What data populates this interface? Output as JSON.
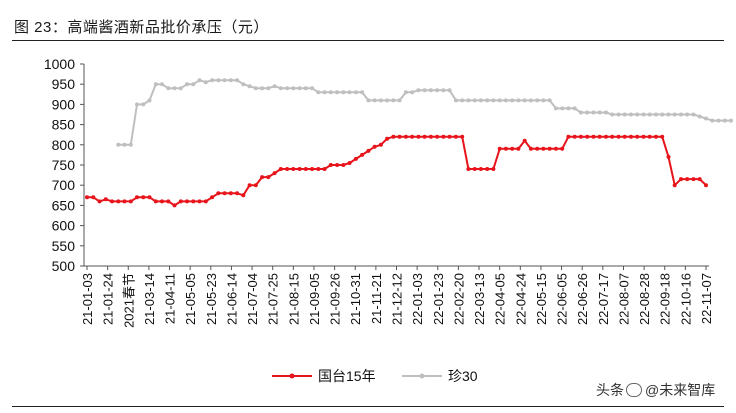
{
  "figure": {
    "title": "图 23：高端酱酒新品批价承压（元）"
  },
  "watermark": {
    "prefix": "头条",
    "name": "@未来智库"
  },
  "chart_data": {
    "type": "line",
    "xlabel": "",
    "ylabel": "",
    "ylim": [
      500,
      1000
    ],
    "y_ticks": [
      500,
      550,
      600,
      650,
      700,
      750,
      800,
      850,
      900,
      950,
      1000
    ],
    "x_tick_labels": [
      "21-01-03",
      "21-01-24",
      "2021春节",
      "21-03-14",
      "21-04-11",
      "21-05-05",
      "21-05-23",
      "21-06-14",
      "21-07-04",
      "21-07-25",
      "21-08-15",
      "21-09-05",
      "21-09-26",
      "21-10-31",
      "21-11-21",
      "21-12-12",
      "22-01-03",
      "22-01-23",
      "22-02-20",
      "22-03-13",
      "22-04-05",
      "22-04-24",
      "22-05-15",
      "22-06-05",
      "22-06-26",
      "22-07-17",
      "22-08-07",
      "22-08-28",
      "22-09-18",
      "22-10-16",
      "22-11-07"
    ],
    "legend": "bottom",
    "grid": false,
    "colors": {
      "国台15年": "#e8141b",
      "珍30": "#bfbfbf"
    },
    "series": [
      {
        "name": "国台15年",
        "values": [
          670,
          670,
          660,
          665,
          660,
          660,
          660,
          660,
          670,
          670,
          670,
          660,
          660,
          660,
          650,
          660,
          660,
          660,
          660,
          660,
          670,
          680,
          680,
          680,
          680,
          675,
          700,
          700,
          720,
          720,
          730,
          740,
          740,
          740,
          740,
          740,
          740,
          740,
          740,
          750,
          750,
          750,
          755,
          765,
          775,
          785,
          795,
          800,
          815,
          820,
          820,
          820,
          820,
          820,
          820,
          820,
          820,
          820,
          820,
          820,
          820,
          740,
          740,
          740,
          740,
          740,
          790,
          790,
          790,
          790,
          810,
          790,
          790,
          790,
          790,
          790,
          790,
          820,
          820,
          820,
          820,
          820,
          820,
          820,
          820,
          820,
          820,
          820,
          820,
          820,
          820,
          820,
          820,
          770,
          700,
          715,
          715,
          715,
          715,
          700
        ]
      },
      {
        "name": "珍30",
        "values": [
          null,
          null,
          null,
          null,
          null,
          800,
          800,
          800,
          900,
          900,
          910,
          950,
          950,
          940,
          940,
          940,
          950,
          950,
          960,
          955,
          960,
          960,
          960,
          960,
          960,
          950,
          945,
          940,
          940,
          940,
          945,
          940,
          940,
          940,
          940,
          940,
          940,
          930,
          930,
          930,
          930,
          930,
          930,
          930,
          930,
          910,
          910,
          910,
          910,
          910,
          910,
          930,
          930,
          935,
          935,
          935,
          935,
          935,
          935,
          910,
          910,
          910,
          910,
          910,
          910,
          910,
          910,
          910,
          910,
          910,
          910,
          910,
          910,
          910,
          910,
          890,
          890,
          890,
          890,
          880,
          880,
          880,
          880,
          880,
          875,
          875,
          875,
          875,
          875,
          875,
          875,
          875,
          875,
          875,
          875,
          875,
          875,
          875,
          870,
          865,
          860,
          860,
          860,
          860
        ]
      }
    ]
  }
}
